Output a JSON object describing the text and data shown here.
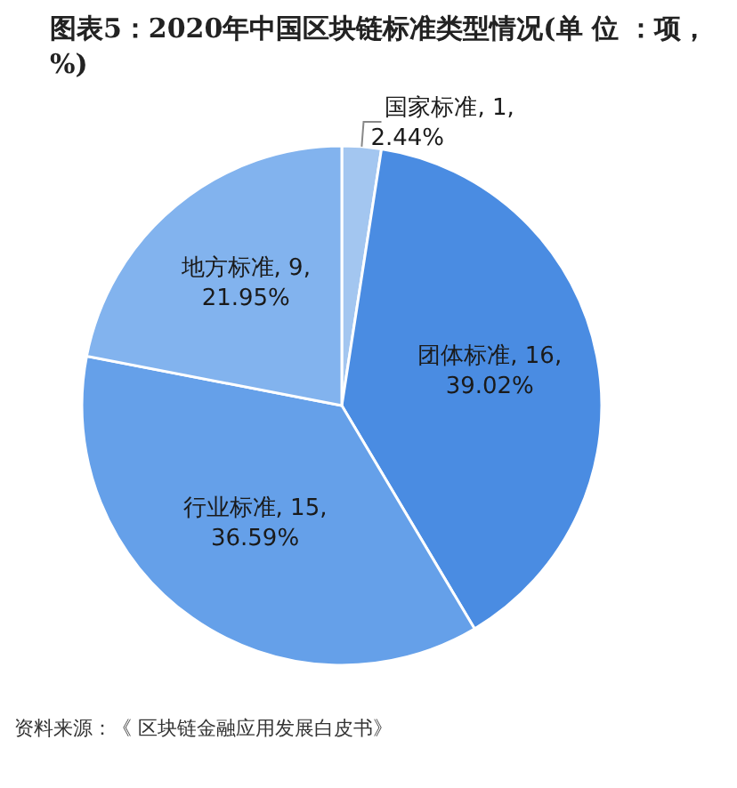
{
  "chart_data": {
    "type": "pie",
    "title": "图表5：2020年中国区块链标准类型情况(单 位 ：项，%)",
    "categories": [
      "国家标准",
      "团体标准",
      "行业标准",
      "地方标准"
    ],
    "values": [
      1,
      16,
      15,
      9
    ],
    "value_labels": [
      "1, 2.44%",
      "16, 39.02%",
      "15, 36.59%",
      "9, 21.95%"
    ],
    "colors": [
      "#a3c6f0",
      "#4a8ce2",
      "#65a0e9",
      "#82b3ee"
    ],
    "annotations": [
      "资料来源：《 区块链金融应用发展白皮书》"
    ]
  }
}
